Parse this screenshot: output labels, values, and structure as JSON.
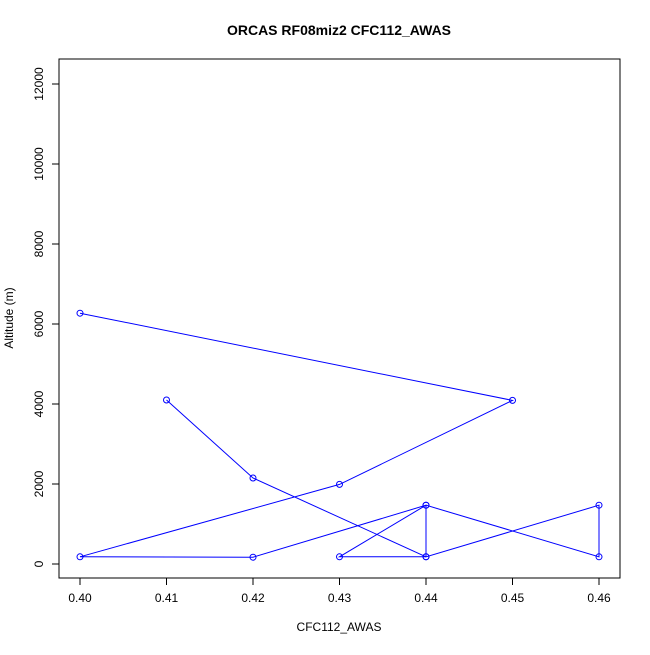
{
  "chart_data": {
    "type": "line",
    "title": "ORCAS RF08miz2 CFC112_AWAS",
    "xlabel": "CFC112_AWAS",
    "ylabel": "Altitude (m)",
    "xlim": [
      0.4,
      0.46
    ],
    "ylim": [
      0,
      12000
    ],
    "x_ticks": [
      0.4,
      0.41,
      0.42,
      0.43,
      0.44,
      0.45,
      0.46
    ],
    "x_tick_labels": [
      "0.40",
      "0.41",
      "0.42",
      "0.43",
      "0.44",
      "0.45",
      "0.46"
    ],
    "y_ticks": [
      0,
      2000,
      4000,
      6000,
      8000,
      10000,
      12000
    ],
    "y_tick_labels": [
      "0",
      "2000",
      "4000",
      "6000",
      "8000",
      "10000",
      "12000"
    ],
    "grid": false,
    "legend": "none",
    "series": [
      {
        "color": "#0000ff",
        "marker": "open-circle",
        "points": [
          {
            "x": 0.4,
            "y": 6270
          },
          {
            "x": 0.45,
            "y": 4090
          },
          {
            "x": 0.43,
            "y": 1990
          },
          {
            "x": 0.4,
            "y": 180
          },
          {
            "x": 0.42,
            "y": 170
          },
          {
            "x": 0.44,
            "y": 1470
          },
          {
            "x": 0.44,
            "y": 180
          },
          {
            "x": 0.46,
            "y": 1470
          },
          {
            "x": 0.46,
            "y": 180
          },
          {
            "x": 0.44,
            "y": 1470
          },
          {
            "x": 0.43,
            "y": 180
          },
          {
            "x": 0.44,
            "y": 180
          },
          {
            "x": 0.42,
            "y": 2150
          },
          {
            "x": 0.41,
            "y": 4100
          }
        ]
      }
    ]
  }
}
